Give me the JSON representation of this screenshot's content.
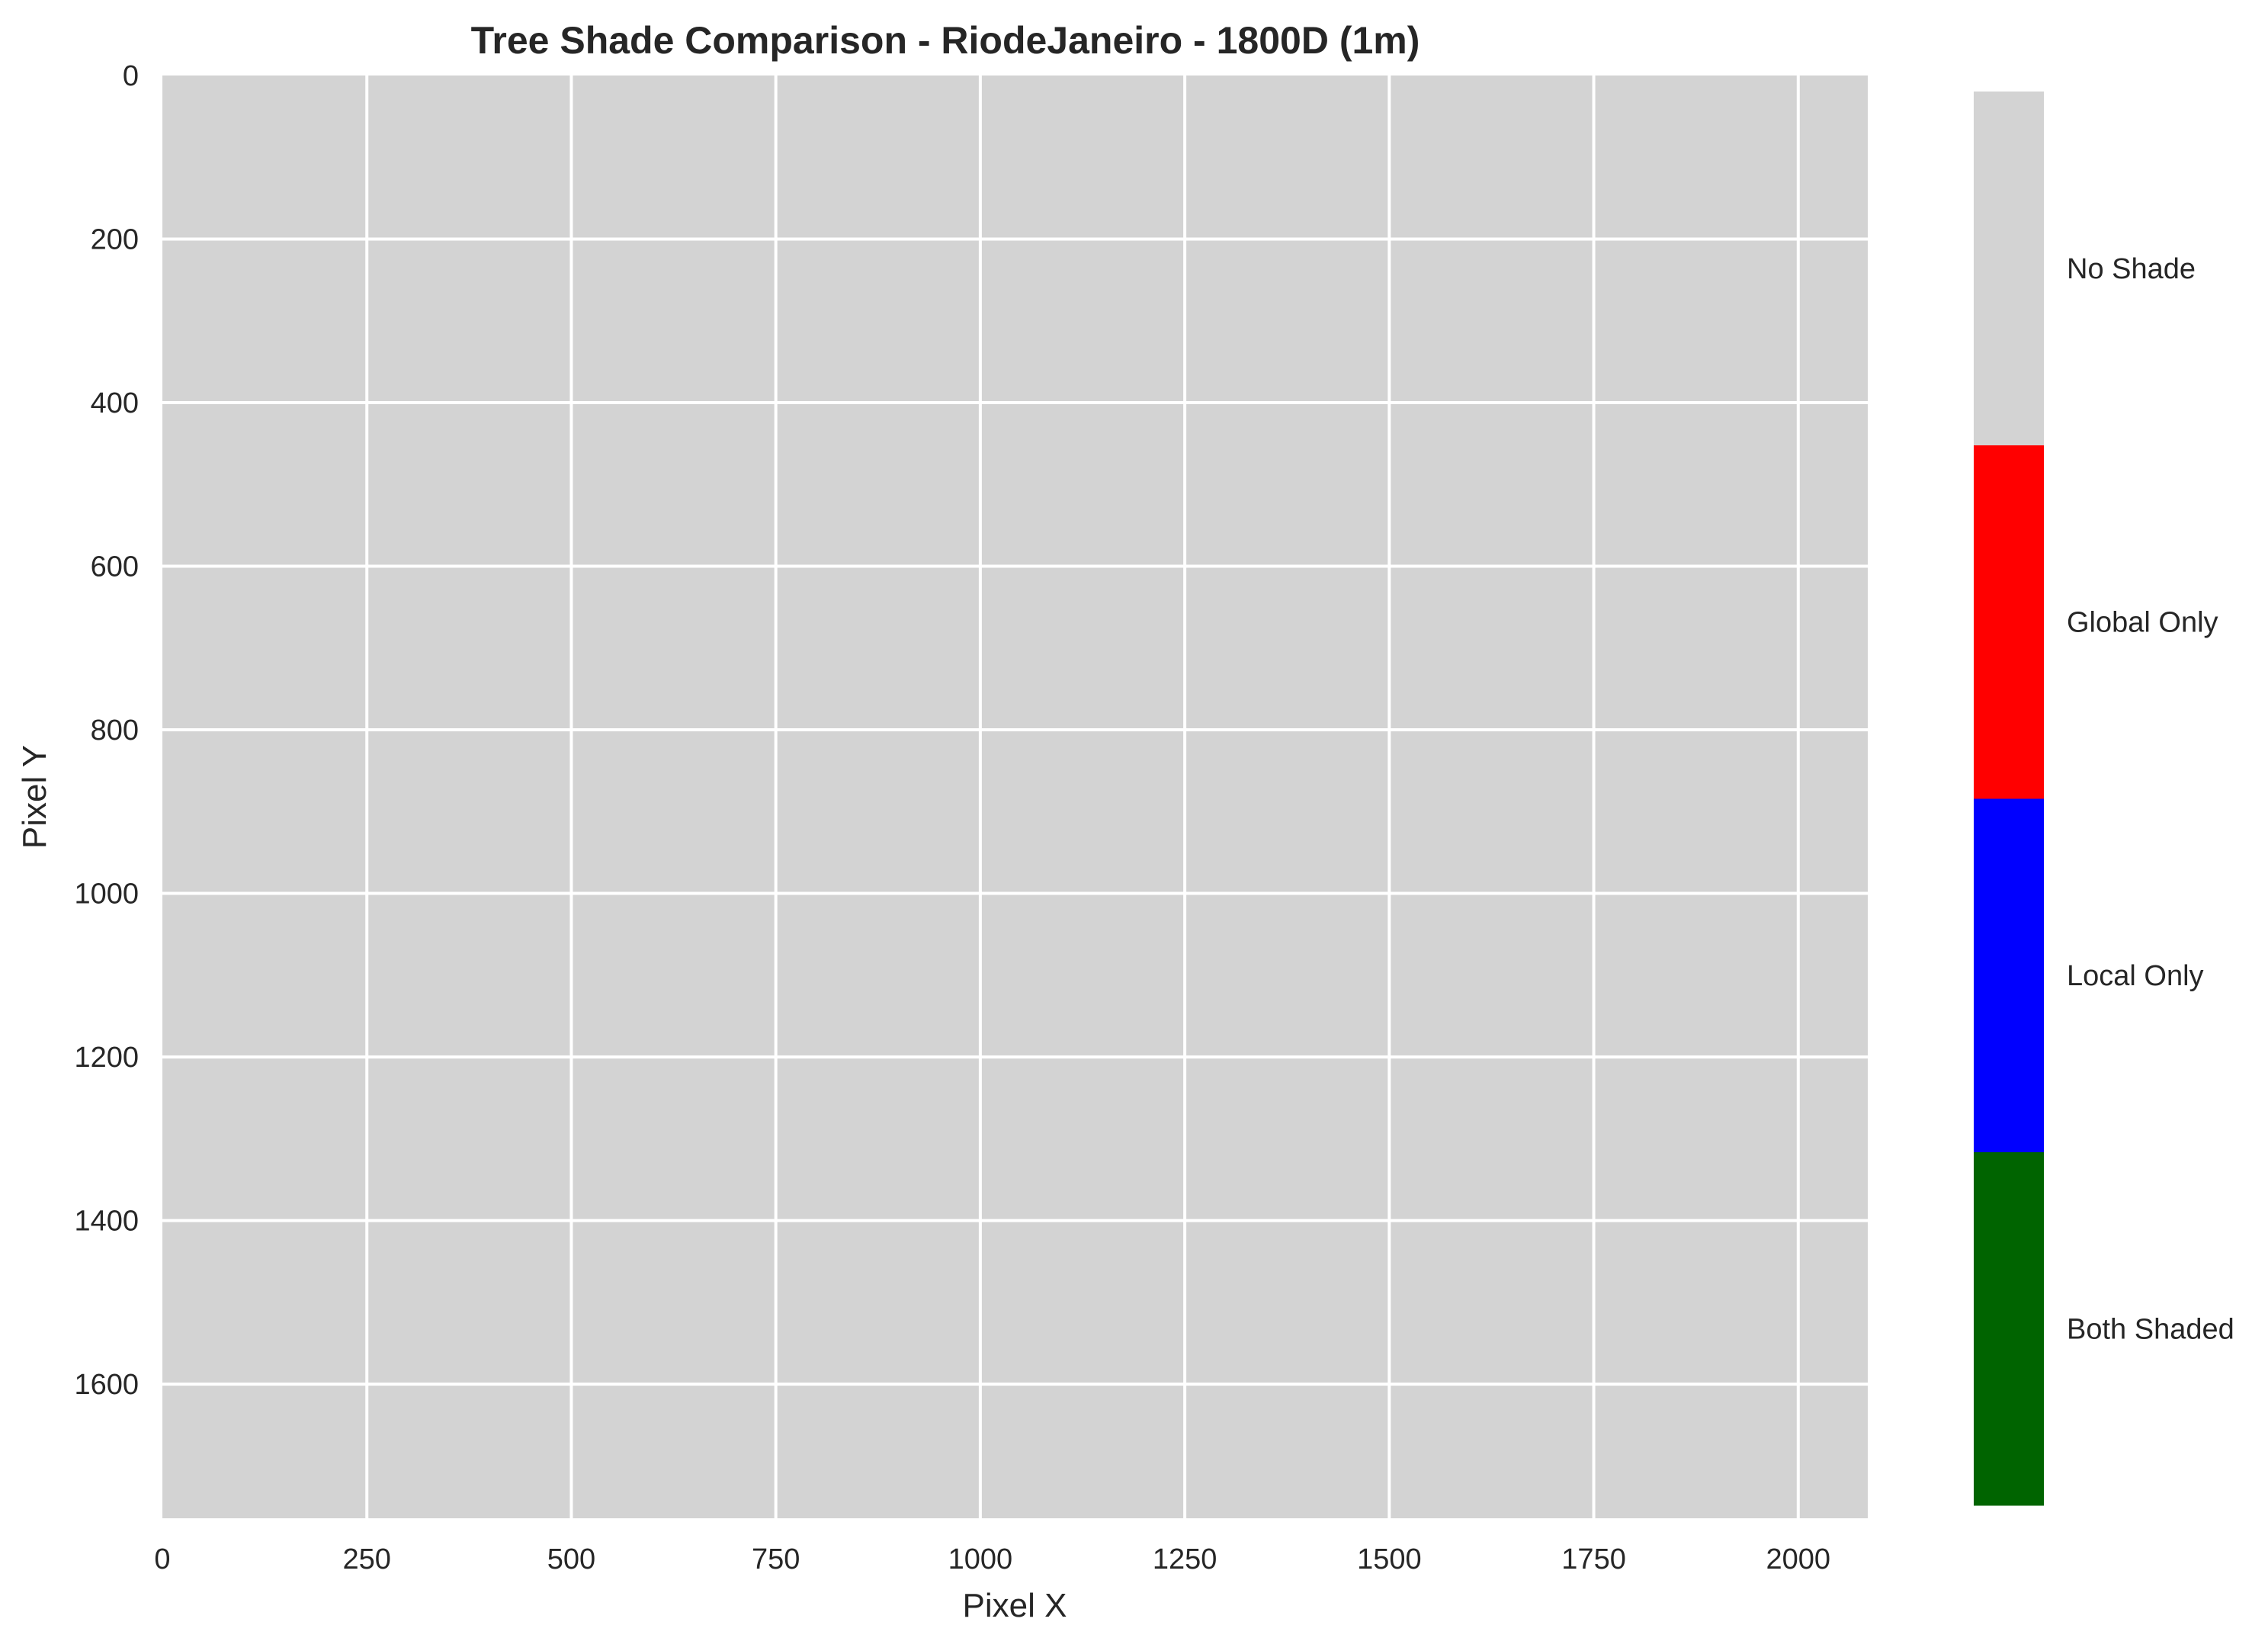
{
  "chart_data": {
    "type": "heatmap",
    "title": "Tree Shade Comparison - RiodeJaneiro - 1800D (1m)",
    "xlabel": "Pixel X",
    "ylabel": "Pixel Y",
    "xlim": [
      0,
      2085
    ],
    "ylim": [
      1764,
      0
    ],
    "x_ticks": [
      0,
      250,
      500,
      750,
      1000,
      1250,
      1500,
      1750,
      2000
    ],
    "y_ticks": [
      0,
      200,
      400,
      600,
      800,
      1000,
      1200,
      1400,
      1600
    ],
    "grid": true,
    "background_value": "No Shade",
    "categories": [
      {
        "label": "Both Shaded",
        "color": "#006400"
      },
      {
        "label": "Local Only",
        "color": "#0000ff"
      },
      {
        "label": "Global Only",
        "color": "#ff0000"
      },
      {
        "label": "No Shade",
        "color": "#d3d3d3"
      }
    ],
    "colorbar_position": "right"
  }
}
